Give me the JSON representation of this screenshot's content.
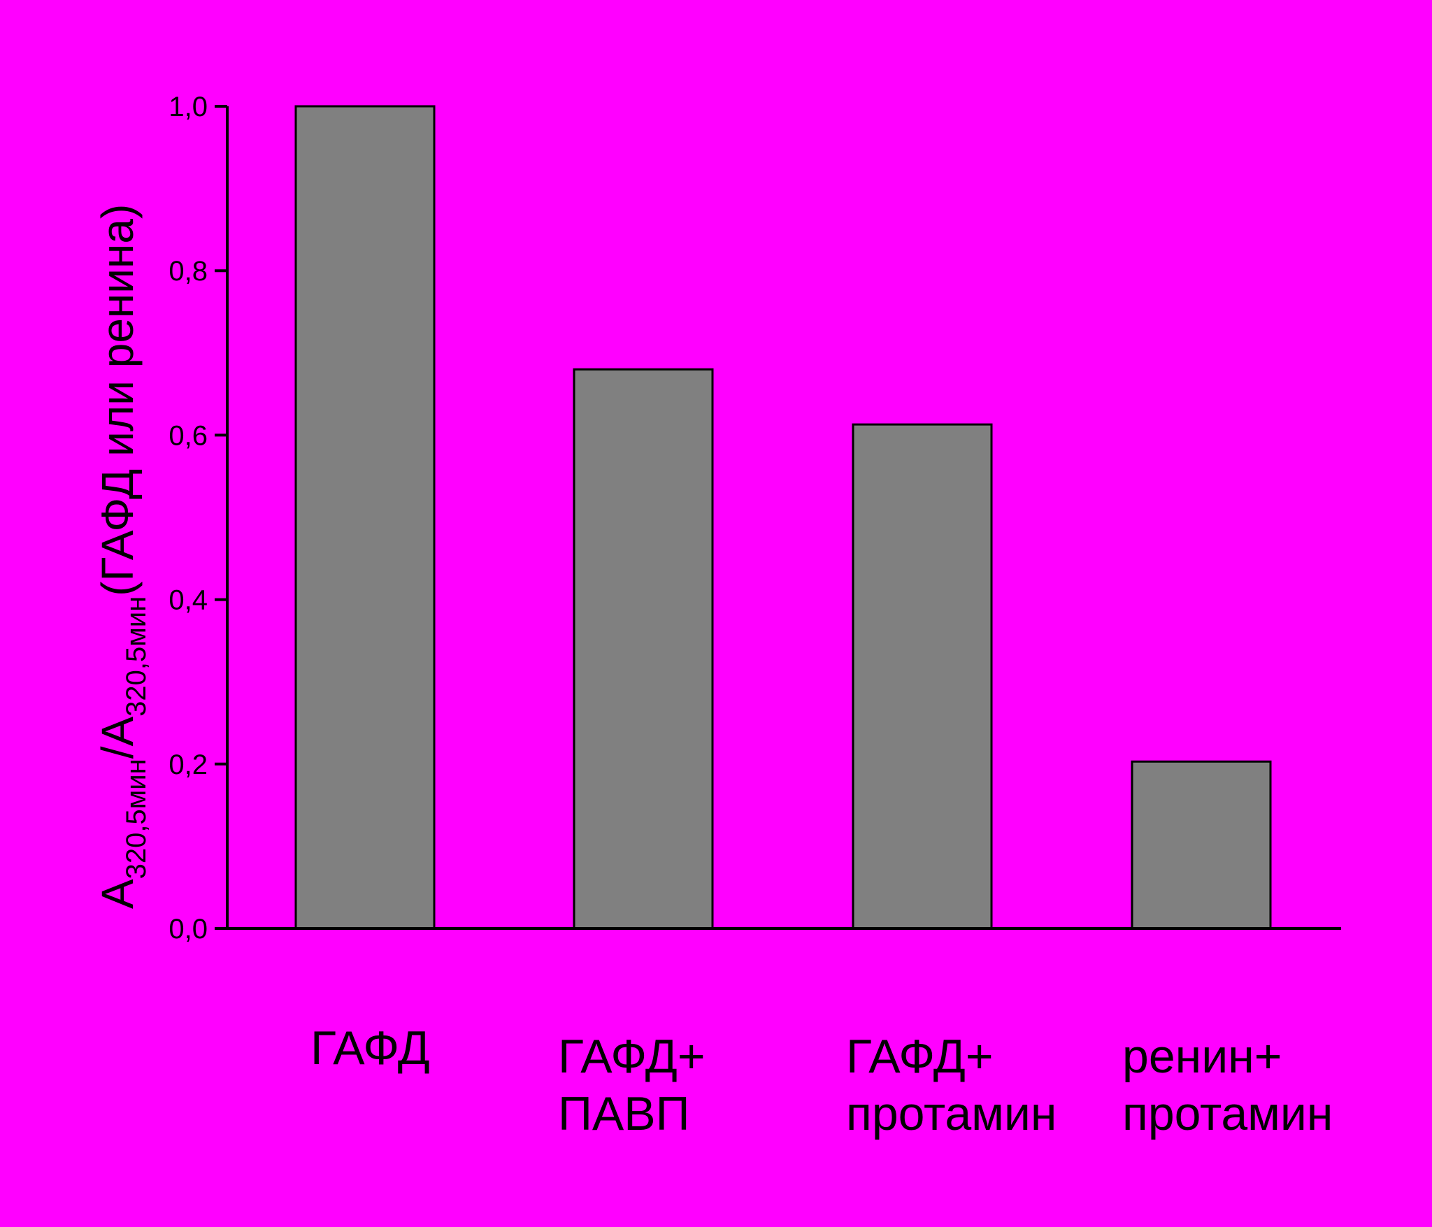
{
  "chart_data": {
    "type": "bar",
    "categories": [
      [
        "ГАФД"
      ],
      [
        "ГАФД+",
        "ПАВП"
      ],
      [
        "ГАФД+",
        "протамин"
      ],
      [
        "ренин+",
        "протамин"
      ]
    ],
    "values": [
      1.0,
      0.68,
      0.613,
      0.203
    ],
    "ylim": [
      0,
      1.0
    ],
    "yticks": [
      {
        "value": 0.0,
        "label": "0,0"
      },
      {
        "value": 0.2,
        "label": "0,2"
      },
      {
        "value": 0.4,
        "label": "0,4"
      },
      {
        "value": 0.6,
        "label": "0,6"
      },
      {
        "value": 0.8,
        "label": "0,8"
      },
      {
        "value": 1.0,
        "label": "1,0"
      }
    ],
    "ylabel": {
      "a1": "A",
      "sub1": "320,5мин",
      "slash": "/A",
      "sub2": "320,5мин",
      "rest": "(ГАФД или ренина)"
    },
    "xlabel": "",
    "grid": false,
    "colors": {
      "background": "#ff00ff",
      "bar": "#808080",
      "axis": "#000000"
    }
  }
}
